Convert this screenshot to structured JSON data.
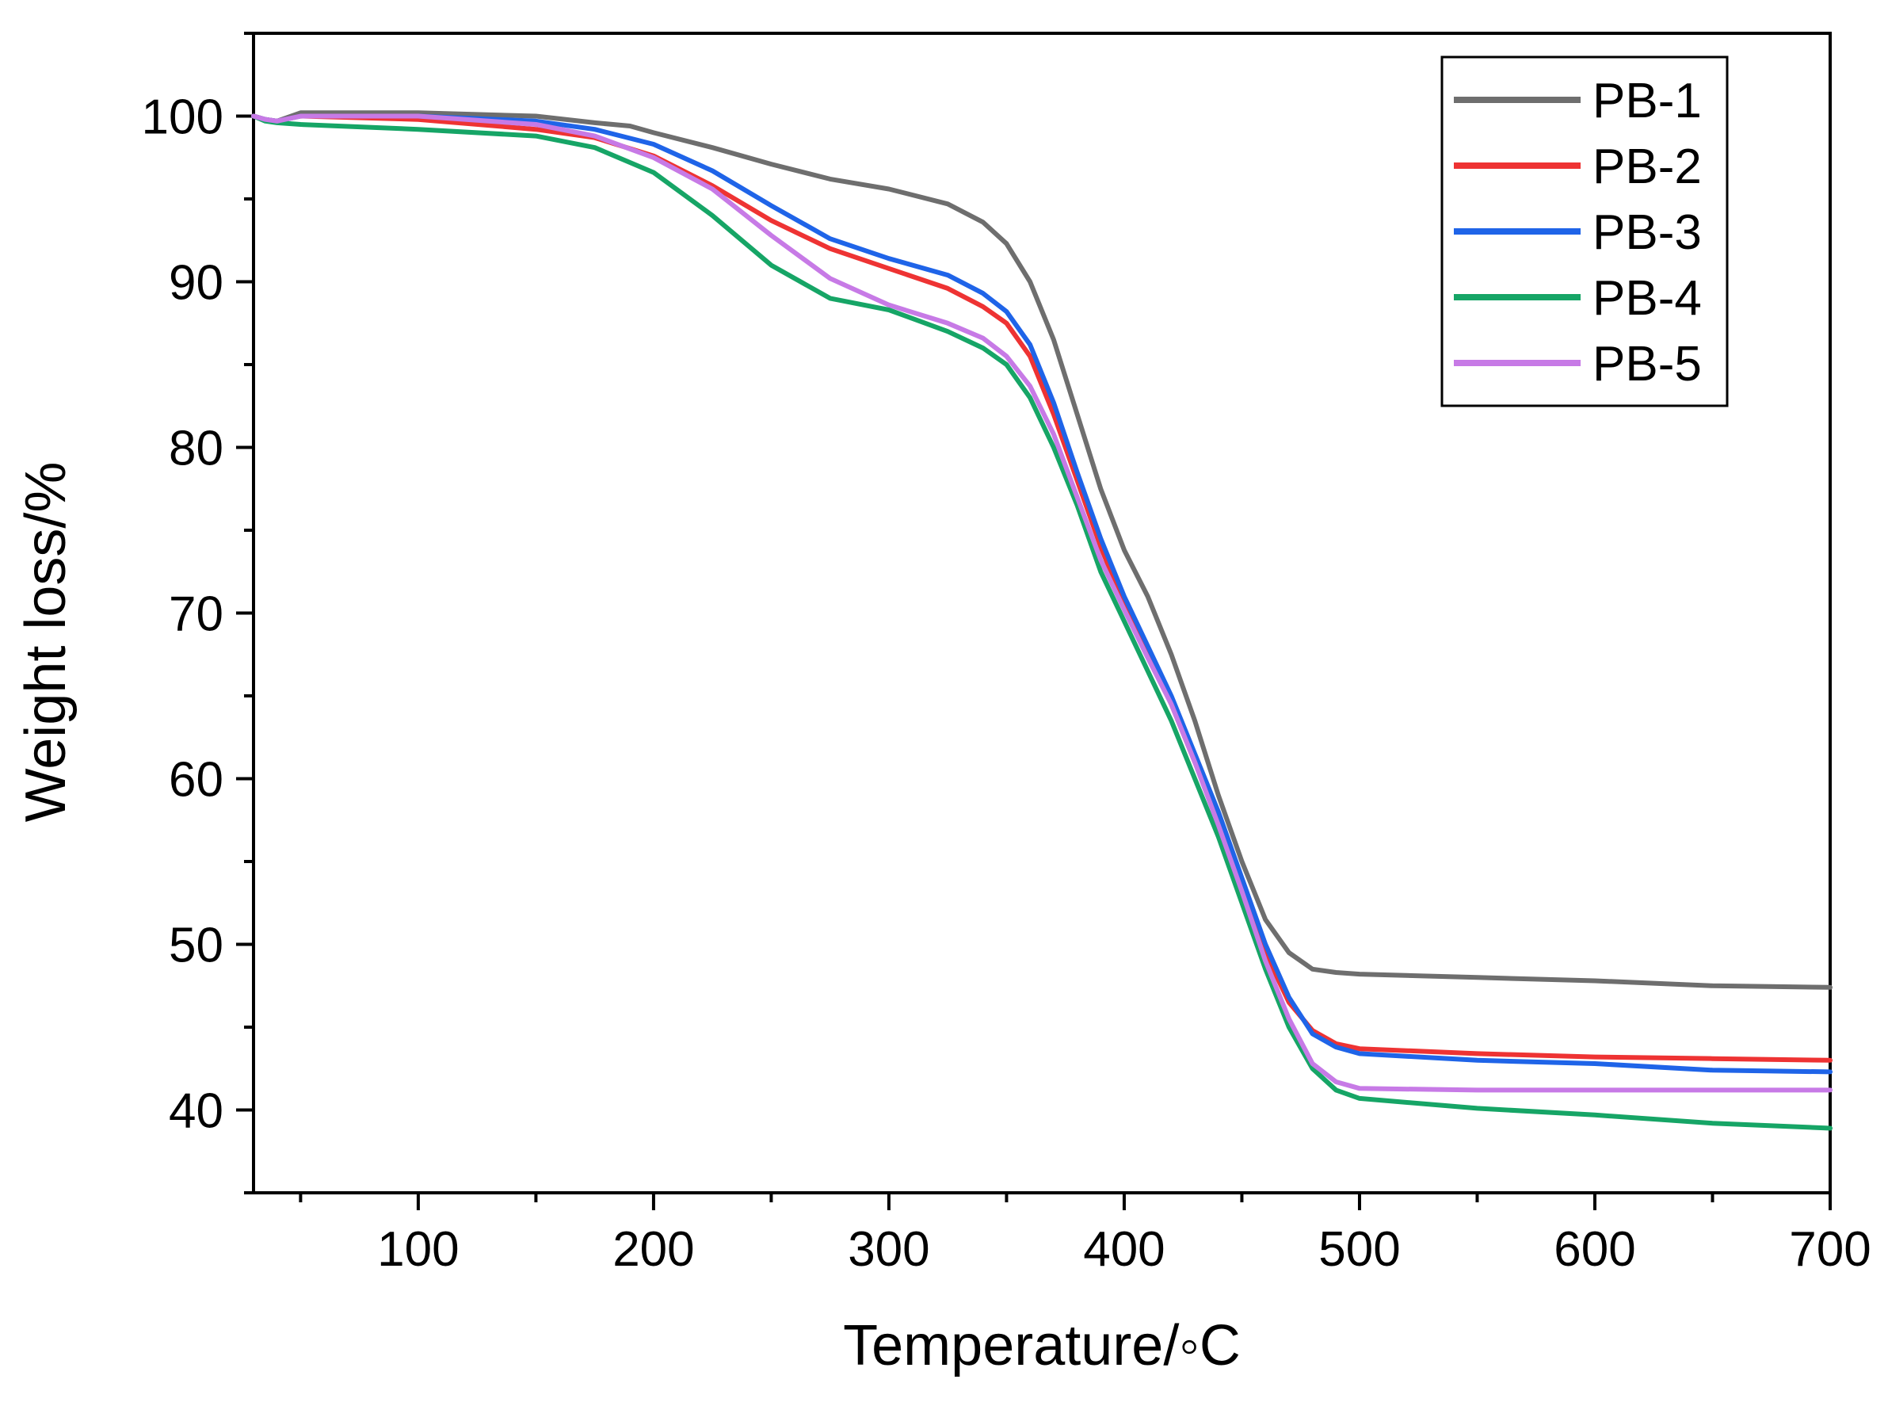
{
  "chart_data": {
    "type": "line",
    "title": "",
    "xlabel": "Temperature/◦C",
    "ylabel": "Weight loss/%",
    "xlim": [
      30,
      700
    ],
    "ylim": [
      35,
      105
    ],
    "xticks": [
      100,
      200,
      300,
      400,
      500,
      600,
      700
    ],
    "yticks": [
      40,
      50,
      60,
      70,
      80,
      90,
      100
    ],
    "xtick_labels": [
      "100",
      "200",
      "300",
      "400",
      "500",
      "600",
      "700"
    ],
    "ytick_labels": [
      "40",
      "50",
      "60",
      "70",
      "80",
      "90",
      "100"
    ],
    "legend_position": "top-right",
    "grid": false,
    "series": [
      {
        "name": "PB-1",
        "color": "#6e6e6e",
        "x": [
          30,
          35,
          40,
          50,
          100,
          150,
          175,
          190,
          200,
          225,
          250,
          275,
          300,
          325,
          340,
          350,
          360,
          370,
          380,
          390,
          400,
          410,
          420,
          430,
          440,
          450,
          460,
          470,
          480,
          490,
          500,
          550,
          600,
          650,
          700
        ],
        "y": [
          100,
          99.8,
          99.7,
          100.2,
          100.2,
          100.0,
          99.6,
          99.4,
          99.0,
          98.1,
          97.1,
          96.2,
          95.6,
          94.7,
          93.6,
          92.3,
          90.0,
          86.5,
          82.0,
          77.5,
          73.8,
          71.0,
          67.5,
          63.5,
          59.0,
          55.0,
          51.5,
          49.5,
          48.5,
          48.3,
          48.2,
          48.0,
          47.8,
          47.5,
          47.4
        ]
      },
      {
        "name": "PB-2",
        "color": "#ee3333",
        "x": [
          30,
          35,
          40,
          50,
          100,
          150,
          175,
          200,
          225,
          250,
          275,
          300,
          325,
          340,
          350,
          360,
          370,
          380,
          390,
          400,
          410,
          420,
          430,
          440,
          450,
          460,
          470,
          480,
          490,
          500,
          550,
          600,
          650,
          700
        ],
        "y": [
          100,
          99.8,
          99.7,
          100.0,
          99.8,
          99.2,
          98.7,
          97.6,
          95.8,
          93.7,
          92.0,
          90.8,
          89.6,
          88.5,
          87.5,
          85.5,
          82.0,
          78.0,
          74.0,
          70.5,
          67.5,
          64.5,
          61.0,
          57.5,
          53.5,
          49.5,
          46.5,
          44.8,
          44.0,
          43.7,
          43.4,
          43.2,
          43.1,
          43.0
        ]
      },
      {
        "name": "PB-3",
        "color": "#1f64e8",
        "x": [
          30,
          35,
          40,
          50,
          100,
          150,
          175,
          200,
          225,
          250,
          275,
          300,
          325,
          340,
          350,
          360,
          370,
          380,
          390,
          400,
          410,
          420,
          430,
          440,
          450,
          460,
          470,
          480,
          490,
          500,
          550,
          600,
          650,
          700
        ],
        "y": [
          100,
          99.8,
          99.7,
          100.0,
          100.0,
          99.7,
          99.2,
          98.3,
          96.7,
          94.6,
          92.6,
          91.4,
          90.4,
          89.3,
          88.2,
          86.2,
          82.7,
          78.5,
          74.5,
          71.0,
          68.0,
          65.0,
          61.5,
          58.0,
          54.0,
          50.0,
          46.8,
          44.6,
          43.8,
          43.4,
          43.0,
          42.8,
          42.4,
          42.3
        ]
      },
      {
        "name": "PB-4",
        "color": "#16a566",
        "x": [
          30,
          35,
          40,
          50,
          100,
          150,
          175,
          200,
          225,
          250,
          275,
          300,
          325,
          340,
          350,
          360,
          370,
          380,
          390,
          400,
          410,
          420,
          430,
          440,
          450,
          460,
          470,
          480,
          490,
          500,
          550,
          600,
          650,
          700
        ],
        "y": [
          100,
          99.7,
          99.6,
          99.5,
          99.2,
          98.8,
          98.1,
          96.6,
          94.0,
          91.0,
          89.0,
          88.3,
          87.0,
          86.0,
          85.0,
          83.0,
          80.0,
          76.5,
          72.5,
          69.5,
          66.5,
          63.5,
          60.0,
          56.5,
          52.5,
          48.5,
          45.0,
          42.5,
          41.2,
          40.7,
          40.1,
          39.7,
          39.2,
          38.9
        ]
      },
      {
        "name": "PB-5",
        "color": "#c77ae6",
        "x": [
          30,
          35,
          40,
          50,
          100,
          150,
          175,
          200,
          225,
          250,
          275,
          300,
          325,
          340,
          350,
          360,
          370,
          380,
          390,
          400,
          410,
          420,
          430,
          440,
          450,
          460,
          470,
          480,
          490,
          500,
          550,
          600,
          650,
          700
        ],
        "y": [
          100,
          99.8,
          99.7,
          100.0,
          100.0,
          99.5,
          98.8,
          97.5,
          95.6,
          92.8,
          90.2,
          88.6,
          87.5,
          86.6,
          85.5,
          83.7,
          80.8,
          77.0,
          73.2,
          70.2,
          67.3,
          64.5,
          61.0,
          57.2,
          53.2,
          49.0,
          45.5,
          42.8,
          41.7,
          41.3,
          41.2,
          41.2,
          41.2,
          41.2
        ]
      }
    ]
  }
}
